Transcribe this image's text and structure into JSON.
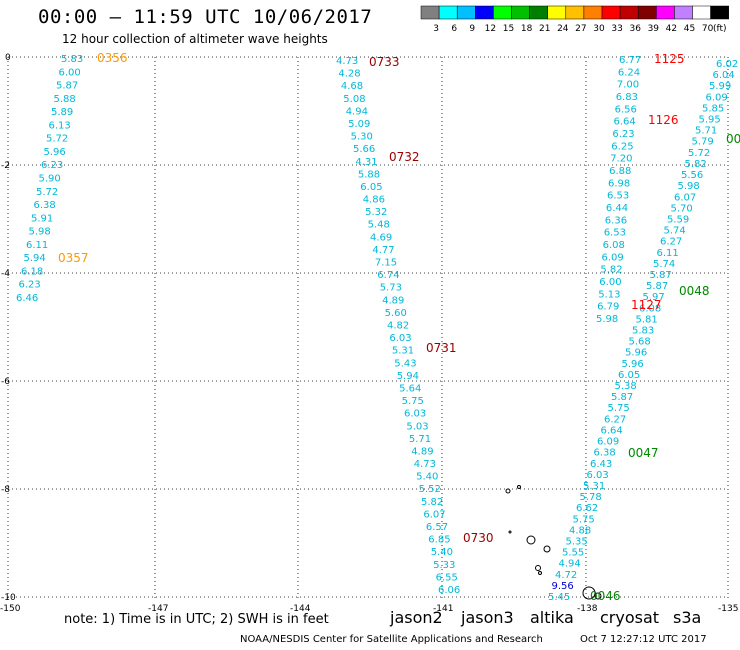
{
  "header": {
    "title": "00:00 – 11:59 UTC 10/06/2017",
    "subtitle": "12 hour collection of altimeter wave heights"
  },
  "legend": {
    "unit": "(ft)",
    "bins": [
      {
        "label": "3",
        "color": "#808080"
      },
      {
        "label": "6",
        "color": "#00ffff"
      },
      {
        "label": "9",
        "color": "#00c0ff"
      },
      {
        "label": "12",
        "color": "#0000ff"
      },
      {
        "label": "15",
        "color": "#00ff00"
      },
      {
        "label": "18",
        "color": "#00c000"
      },
      {
        "label": "21",
        "color": "#008000"
      },
      {
        "label": "24",
        "color": "#ffff00"
      },
      {
        "label": "27",
        "color": "#ffc000"
      },
      {
        "label": "30",
        "color": "#ff8000"
      },
      {
        "label": "33",
        "color": "#ff0000"
      },
      {
        "label": "36",
        "color": "#c00000"
      },
      {
        "label": "39",
        "color": "#800000"
      },
      {
        "label": "42",
        "color": "#ff00ff"
      },
      {
        "label": "45",
        "color": "#c080ff"
      },
      {
        "label": "70",
        "color": "#ffffff"
      },
      {
        "label": "",
        "color": "#000000"
      }
    ]
  },
  "axes": {
    "lon_labels": [
      "-150",
      "-147",
      "-144",
      "-141",
      "-138",
      "-135"
    ],
    "lat_labels": [
      "0",
      "-2",
      "-4",
      "-6",
      "-8",
      "-10"
    ]
  },
  "tracks": [
    {
      "time": "0356",
      "color": "#ff9900",
      "values": [
        "5.83",
        "6.00",
        "5.87",
        "5.88",
        "5.89",
        "6.13",
        "5.72",
        "5.96",
        "6.23",
        "5.90",
        "5.72",
        "6.38",
        "5.91",
        "5.98",
        "6.11",
        "5.94",
        "6.18",
        "6.23",
        "6.46"
      ]
    },
    {
      "time": "0357",
      "color": "#ff9900",
      "values": []
    },
    {
      "time": "0733",
      "color": "#990000",
      "values": [
        "4.73",
        "4.28",
        "4.68",
        "5.08",
        "4.94",
        "5.09",
        "5.30",
        "5.66",
        "4.31",
        "5.88",
        "6.05",
        "4.86",
        "5.32",
        "5.48",
        "4.69",
        "4.77",
        "7.15",
        "6.74",
        "5.73",
        "4.89",
        "5.60",
        "4.82",
        "6.03",
        "5.31",
        "5.43",
        "5.94",
        "5.64",
        "5.75",
        "6.03",
        "5.03",
        "5.71",
        "4.89",
        "4.73",
        "5.40",
        "5.52",
        "5.82",
        "6.07",
        "6.57",
        "6.85",
        "5.40",
        "5.33",
        "6.55",
        "6.06"
      ]
    },
    {
      "time": "0732",
      "color": "#990000",
      "values": []
    },
    {
      "time": "0731",
      "color": "#990000",
      "values": []
    },
    {
      "time": "0730",
      "color": "#990000",
      "values": []
    },
    {
      "time": "1125",
      "color": "#ff0000",
      "values": [
        "6.77",
        "6.24",
        "7.00",
        "6.83",
        "6.56",
        "6.64",
        "6.23",
        "6.25",
        "7.20",
        "6.88",
        "6.98",
        "6.53",
        "6.44",
        "6.36",
        "6.53",
        "6.08",
        "6.09",
        "5.82",
        "6.00",
        "5.13",
        "6.79",
        "5.98"
      ]
    },
    {
      "time": "1126",
      "color": "#ff0000",
      "values": []
    },
    {
      "time": "1127",
      "color": "#ff0000",
      "values": []
    },
    {
      "time": "0048",
      "color": "#008800",
      "values": [
        "6.02",
        "6.04",
        "5.99",
        "6.09",
        "5.85",
        "5.95",
        "5.71",
        "5.79",
        "5.72",
        "5.82",
        "5.56",
        "5.98",
        "6.07",
        "5.70",
        "5.59",
        "5.74",
        "6.27",
        "6.11",
        "5.74",
        "5.87",
        "5.87",
        "5.97",
        "6.08",
        "5.81",
        "5.83",
        "5.68",
        "5.96",
        "5.96",
        "6.05",
        "5.38",
        "5.87",
        "5.75",
        "6.27",
        "6.64",
        "6.09",
        "6.38",
        "6.43",
        "6.03",
        "5.31",
        "5.78",
        "6.62",
        "5.75",
        "4.88",
        "5.35",
        "5.55",
        "4.94",
        "4.72",
        "9.56",
        "5.45"
      ]
    },
    {
      "time": "0047",
      "color": "#008800",
      "values": []
    },
    {
      "time": "0046",
      "color": "#008800",
      "values": []
    },
    {
      "time": "00",
      "color": "#008800",
      "values": []
    }
  ],
  "note": "note:  1) Time is in UTC;  2) SWH is in feet",
  "satellites": [
    {
      "name": "jason2",
      "color": "#0000ff"
    },
    {
      "name": "jason3",
      "color": "#00aa00"
    },
    {
      "name": "altika",
      "color": "#ff9900"
    },
    {
      "name": "cryosat",
      "color": "#ff0000"
    },
    {
      "name": "s3a",
      "color": "#990000"
    }
  ],
  "footer": {
    "credit": "NOAA/NESDIS Center for Satellite Applications and Research",
    "timestamp": "Oct  7 12:27:12 UTC 2017"
  }
}
